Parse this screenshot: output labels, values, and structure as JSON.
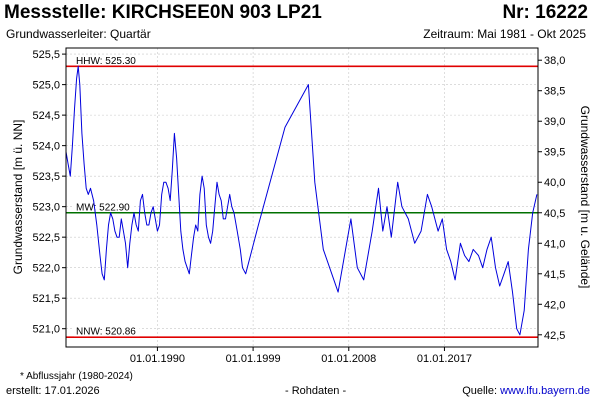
{
  "header": {
    "title": "Messstelle: KIRCHSEE0N 903 LP21",
    "number": "Nr: 16222",
    "aquifer": "Grundwasserleiter: Quartär",
    "period": "Zeitraum: Mai 1981 - Okt 2025"
  },
  "footer": {
    "footnote": "* Abflussjahr (1980-2024)",
    "created": "erstellt:  17.01.2026",
    "raw": "- Rohdaten -",
    "source_label": "Quelle: ",
    "source_link": "www.lfu.bayern.de"
  },
  "colors": {
    "series": "#0000dd",
    "hhw": "#e00000",
    "nnw": "#e00000",
    "mw": "#007000",
    "grid": "#c8c8c8"
  },
  "chart_data": {
    "type": "line",
    "ylabel": "Grundwasserstand [m ü. NN]",
    "y2label": "Grundwasserstand [m u. Gelände]",
    "ylim": [
      520.7,
      525.6
    ],
    "y2lim": [
      42.7,
      37.8
    ],
    "xlim": [
      1981.4,
      2025.8
    ],
    "grid": true,
    "yticks": [
      "521,0",
      "521,5",
      "522,0",
      "522,5",
      "523,0",
      "523,5",
      "524,0",
      "524,5",
      "525,0",
      "525,5"
    ],
    "y2ticks": [
      "38,0",
      "38,5",
      "39,0",
      "39,5",
      "40,0",
      "40,5",
      "41,0",
      "41,5",
      "42,0",
      "42,5"
    ],
    "xticks": [
      {
        "label": "01.01.1990",
        "x": 1990.0
      },
      {
        "label": "01.01.1999",
        "x": 1999.0
      },
      {
        "label": "01.01.2008",
        "x": 2008.0
      },
      {
        "label": "01.01.2017",
        "x": 2017.0
      }
    ],
    "reference_lines": [
      {
        "label": "HHW: 525.30",
        "value": 525.3,
        "color_key": "hhw"
      },
      {
        "label": "MW: 522.90",
        "value": 522.9,
        "color_key": "mw"
      },
      {
        "label": "NNW: 520.86",
        "value": 520.86,
        "color_key": "nnw"
      }
    ],
    "series": [
      {
        "values": [
          [
            1981.4,
            523.9
          ],
          [
            1981.6,
            523.7
          ],
          [
            1981.8,
            523.5
          ],
          [
            1982.0,
            524.0
          ],
          [
            1982.2,
            524.6
          ],
          [
            1982.4,
            525.1
          ],
          [
            1982.55,
            525.3
          ],
          [
            1982.7,
            525.0
          ],
          [
            1982.9,
            524.2
          ],
          [
            1983.1,
            523.7
          ],
          [
            1983.3,
            523.3
          ],
          [
            1983.5,
            523.2
          ],
          [
            1983.7,
            523.3
          ],
          [
            1984.0,
            523.1
          ],
          [
            1984.3,
            522.7
          ],
          [
            1984.6,
            522.2
          ],
          [
            1984.8,
            521.9
          ],
          [
            1985.0,
            521.8
          ],
          [
            1985.2,
            522.3
          ],
          [
            1985.4,
            522.7
          ],
          [
            1985.6,
            522.9
          ],
          [
            1985.8,
            522.8
          ],
          [
            1986.0,
            522.6
          ],
          [
            1986.2,
            522.5
          ],
          [
            1986.4,
            522.5
          ],
          [
            1986.6,
            522.8
          ],
          [
            1986.8,
            522.6
          ],
          [
            1987.0,
            522.4
          ],
          [
            1987.2,
            522.0
          ],
          [
            1987.4,
            522.4
          ],
          [
            1987.6,
            522.7
          ],
          [
            1987.8,
            522.9
          ],
          [
            1988.0,
            522.7
          ],
          [
            1988.2,
            522.6
          ],
          [
            1988.4,
            523.1
          ],
          [
            1988.6,
            523.2
          ],
          [
            1988.8,
            522.9
          ],
          [
            1989.0,
            522.7
          ],
          [
            1989.2,
            522.7
          ],
          [
            1989.4,
            522.9
          ],
          [
            1989.6,
            523.0
          ],
          [
            1989.8,
            522.8
          ],
          [
            1990.0,
            522.6
          ],
          [
            1990.2,
            522.7
          ],
          [
            1990.4,
            523.2
          ],
          [
            1990.6,
            523.4
          ],
          [
            1990.8,
            523.4
          ],
          [
            1991.0,
            523.3
          ],
          [
            1991.2,
            523.1
          ],
          [
            1991.4,
            523.6
          ],
          [
            1991.6,
            524.2
          ],
          [
            1991.8,
            523.8
          ],
          [
            1992.0,
            523.2
          ],
          [
            1992.2,
            522.6
          ],
          [
            1992.4,
            522.3
          ],
          [
            1992.6,
            522.1
          ],
          [
            1992.8,
            522.0
          ],
          [
            1993.0,
            521.9
          ],
          [
            1993.2,
            522.2
          ],
          [
            1993.4,
            522.5
          ],
          [
            1993.6,
            522.7
          ],
          [
            1993.8,
            522.6
          ],
          [
            1994.0,
            523.2
          ],
          [
            1994.2,
            523.5
          ],
          [
            1994.4,
            523.3
          ],
          [
            1994.6,
            522.7
          ],
          [
            1994.8,
            522.5
          ],
          [
            1995.0,
            522.4
          ],
          [
            1995.2,
            522.6
          ],
          [
            1995.4,
            523.0
          ],
          [
            1995.6,
            523.4
          ],
          [
            1995.8,
            523.2
          ],
          [
            1996.0,
            523.1
          ],
          [
            1996.2,
            522.8
          ],
          [
            1996.4,
            522.8
          ],
          [
            1996.6,
            523.0
          ],
          [
            1996.8,
            523.2
          ],
          [
            1997.0,
            523.0
          ],
          [
            1997.2,
            522.9
          ],
          [
            1997.5,
            522.6
          ],
          [
            1997.8,
            522.3
          ],
          [
            1998.0,
            522.0
          ],
          [
            1998.3,
            521.9
          ],
          [
            1999.5,
            522.7
          ],
          [
            2002.0,
            524.3
          ],
          [
            2004.2,
            525.0
          ],
          [
            2004.8,
            523.4
          ],
          [
            2005.6,
            522.3
          ],
          [
            2007.0,
            521.6
          ],
          [
            2008.2,
            522.8
          ],
          [
            2008.8,
            522.0
          ],
          [
            2009.4,
            521.8
          ],
          [
            2010.2,
            522.6
          ],
          [
            2010.8,
            523.3
          ],
          [
            2011.2,
            522.6
          ],
          [
            2011.6,
            523.0
          ],
          [
            2012.0,
            522.5
          ],
          [
            2012.6,
            523.4
          ],
          [
            2013.0,
            523.0
          ],
          [
            2013.6,
            522.8
          ],
          [
            2014.2,
            522.4
          ],
          [
            2014.8,
            522.6
          ],
          [
            2015.4,
            523.2
          ],
          [
            2015.8,
            523.0
          ],
          [
            2016.4,
            522.6
          ],
          [
            2016.8,
            522.8
          ],
          [
            2017.2,
            522.3
          ],
          [
            2017.6,
            522.1
          ],
          [
            2018.0,
            521.8
          ],
          [
            2018.5,
            522.4
          ],
          [
            2018.9,
            522.2
          ],
          [
            2019.3,
            522.1
          ],
          [
            2019.7,
            522.3
          ],
          [
            2020.2,
            522.2
          ],
          [
            2020.6,
            522.0
          ],
          [
            2021.0,
            522.3
          ],
          [
            2021.4,
            522.5
          ],
          [
            2021.8,
            522.0
          ],
          [
            2022.2,
            521.7
          ],
          [
            2022.6,
            521.9
          ],
          [
            2023.0,
            522.1
          ],
          [
            2023.4,
            521.6
          ],
          [
            2023.8,
            521.0
          ],
          [
            2024.1,
            520.9
          ],
          [
            2024.5,
            521.3
          ],
          [
            2024.9,
            522.3
          ],
          [
            2025.3,
            522.9
          ],
          [
            2025.7,
            523.2
          ]
        ]
      }
    ]
  }
}
